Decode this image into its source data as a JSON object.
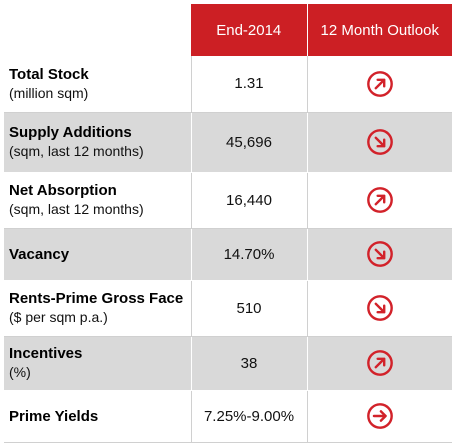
{
  "table": {
    "header": {
      "col1": "",
      "col2": "End-2014",
      "col3": "12 Month Outlook"
    },
    "rows": [
      {
        "label": "Total Stock",
        "sublabel": "(million sqm)",
        "value": "1.31",
        "outlook_icon": "arrow-up-right-icon"
      },
      {
        "label": "Supply Additions",
        "sublabel": "(sqm, last 12 months)",
        "value": "45,696",
        "outlook_icon": "arrow-down-right-icon"
      },
      {
        "label": "Net Absorption",
        "sublabel": "(sqm, last 12 months)",
        "value": "16,440",
        "outlook_icon": "arrow-up-right-icon"
      },
      {
        "label": "Vacancy",
        "sublabel": "",
        "value": "14.70%",
        "outlook_icon": "arrow-down-right-icon"
      },
      {
        "label": "Rents-Prime Gross Face",
        "sublabel": "($ per sqm p.a.)",
        "value": "510",
        "outlook_icon": "arrow-down-right-icon"
      },
      {
        "label": "Incentives",
        "sublabel": "(%)",
        "value": "38",
        "outlook_icon": "arrow-up-right-icon"
      },
      {
        "label": "Prime Yields",
        "sublabel": "",
        "value": "7.25%-9.00%",
        "outlook_icon": "arrow-right-icon"
      }
    ]
  },
  "colors": {
    "header_bg": "#cc1f24",
    "icon_red": "#d2222a",
    "stripe_grey": "#d9d9d9"
  }
}
